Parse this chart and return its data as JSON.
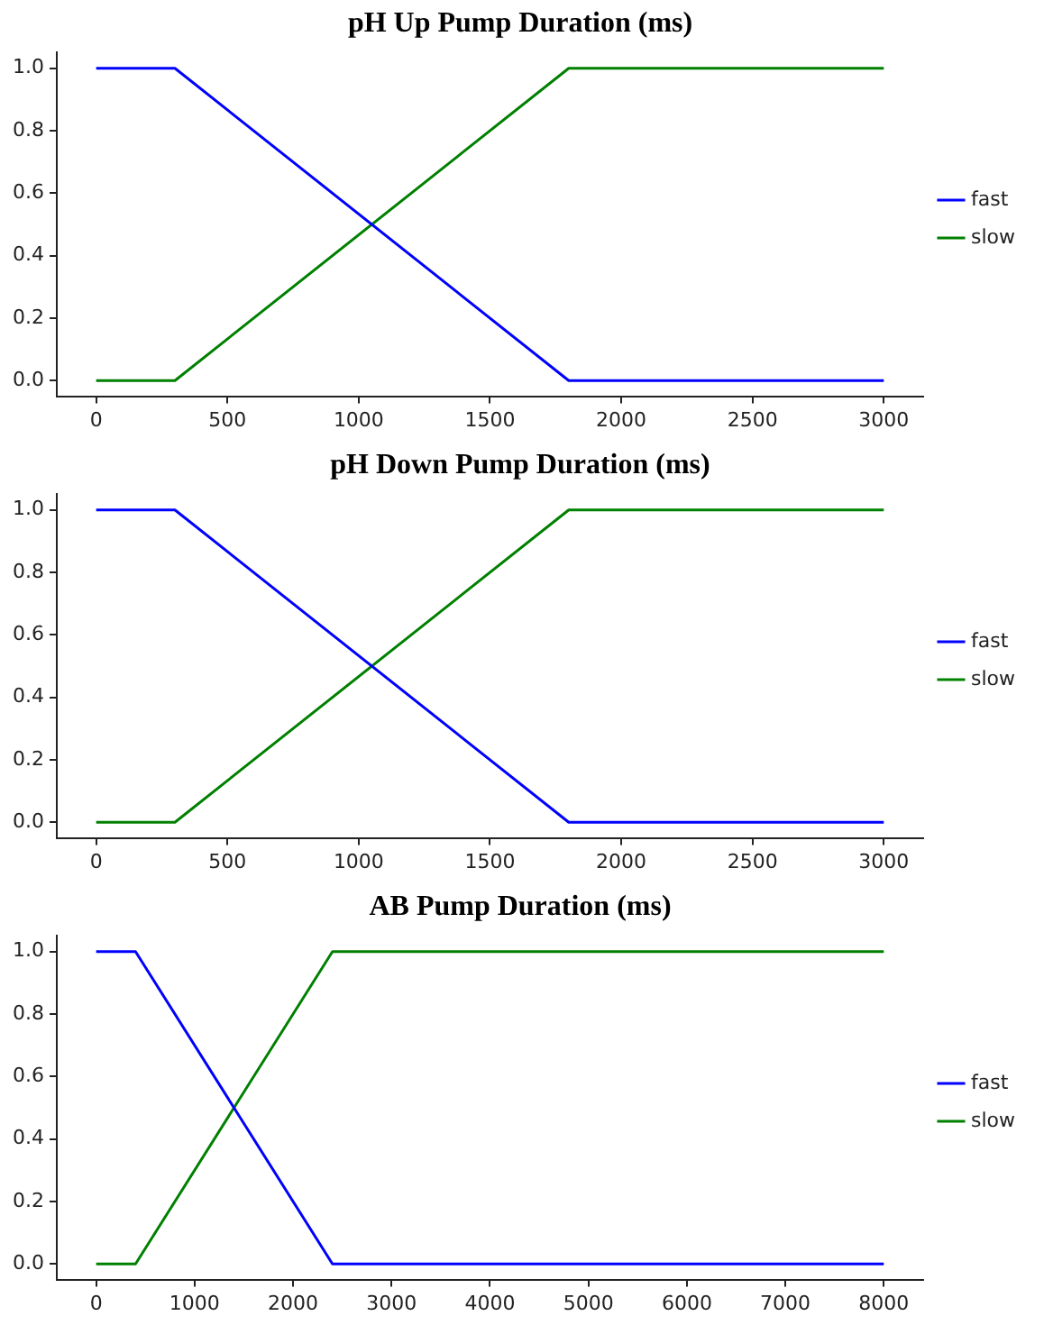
{
  "chart_data": [
    {
      "type": "line",
      "title": "pH Up Pump Duration (ms)",
      "x": [
        0,
        300,
        1800,
        3000
      ],
      "series": [
        {
          "name": "fast",
          "color": "#0000ff",
          "values": [
            1,
            1,
            0,
            0
          ]
        },
        {
          "name": "slow",
          "color": "#008000",
          "values": [
            0,
            0,
            1,
            1
          ]
        }
      ],
      "xlim": [
        -150,
        3150
      ],
      "xticks": [
        0,
        500,
        1000,
        1500,
        2000,
        2500,
        3000
      ],
      "ylim": [
        -0.05,
        1.05
      ],
      "yticks": [
        {
          "value": 0,
          "label": "0.0"
        },
        {
          "value": 0.2,
          "label": "0.2"
        },
        {
          "value": 0.4,
          "label": "0.4"
        },
        {
          "value": 0.6,
          "label": "0.6"
        },
        {
          "value": 0.8,
          "label": "0.8"
        },
        {
          "value": 1,
          "label": "1.0"
        }
      ],
      "grid": false,
      "legend": "right",
      "marker": "none",
      "line_style": "solid"
    },
    {
      "type": "line",
      "title": "pH Down Pump Duration (ms)",
      "x": [
        0,
        300,
        1800,
        3000
      ],
      "series": [
        {
          "name": "fast",
          "color": "#0000ff",
          "values": [
            1,
            1,
            0,
            0
          ]
        },
        {
          "name": "slow",
          "color": "#008000",
          "values": [
            0,
            0,
            1,
            1
          ]
        }
      ],
      "xlim": [
        -150,
        3150
      ],
      "xticks": [
        0,
        500,
        1000,
        1500,
        2000,
        2500,
        3000
      ],
      "ylim": [
        -0.05,
        1.05
      ],
      "yticks": [
        {
          "value": 0,
          "label": "0.0"
        },
        {
          "value": 0.2,
          "label": "0.2"
        },
        {
          "value": 0.4,
          "label": "0.4"
        },
        {
          "value": 0.6,
          "label": "0.6"
        },
        {
          "value": 0.8,
          "label": "0.8"
        },
        {
          "value": 1,
          "label": "1.0"
        }
      ],
      "grid": false,
      "legend": "right",
      "marker": "none",
      "line_style": "solid"
    },
    {
      "type": "line",
      "title": "AB Pump Duration (ms)",
      "x": [
        0,
        400,
        2400,
        8000
      ],
      "series": [
        {
          "name": "fast",
          "color": "#0000ff",
          "values": [
            1,
            1,
            0,
            0
          ]
        },
        {
          "name": "slow",
          "color": "#008000",
          "values": [
            0,
            0,
            1,
            1
          ]
        }
      ],
      "xlim": [
        -400,
        8400
      ],
      "xticks": [
        0,
        1000,
        2000,
        3000,
        4000,
        5000,
        6000,
        7000,
        8000
      ],
      "ylim": [
        -0.05,
        1.05
      ],
      "yticks": [
        {
          "value": 0,
          "label": "0.0"
        },
        {
          "value": 0.2,
          "label": "0.2"
        },
        {
          "value": 0.4,
          "label": "0.4"
        },
        {
          "value": 0.6,
          "label": "0.6"
        },
        {
          "value": 0.8,
          "label": "0.8"
        },
        {
          "value": 1,
          "label": "1.0"
        }
      ],
      "grid": false,
      "legend": "right",
      "marker": "none",
      "line_style": "solid"
    }
  ]
}
